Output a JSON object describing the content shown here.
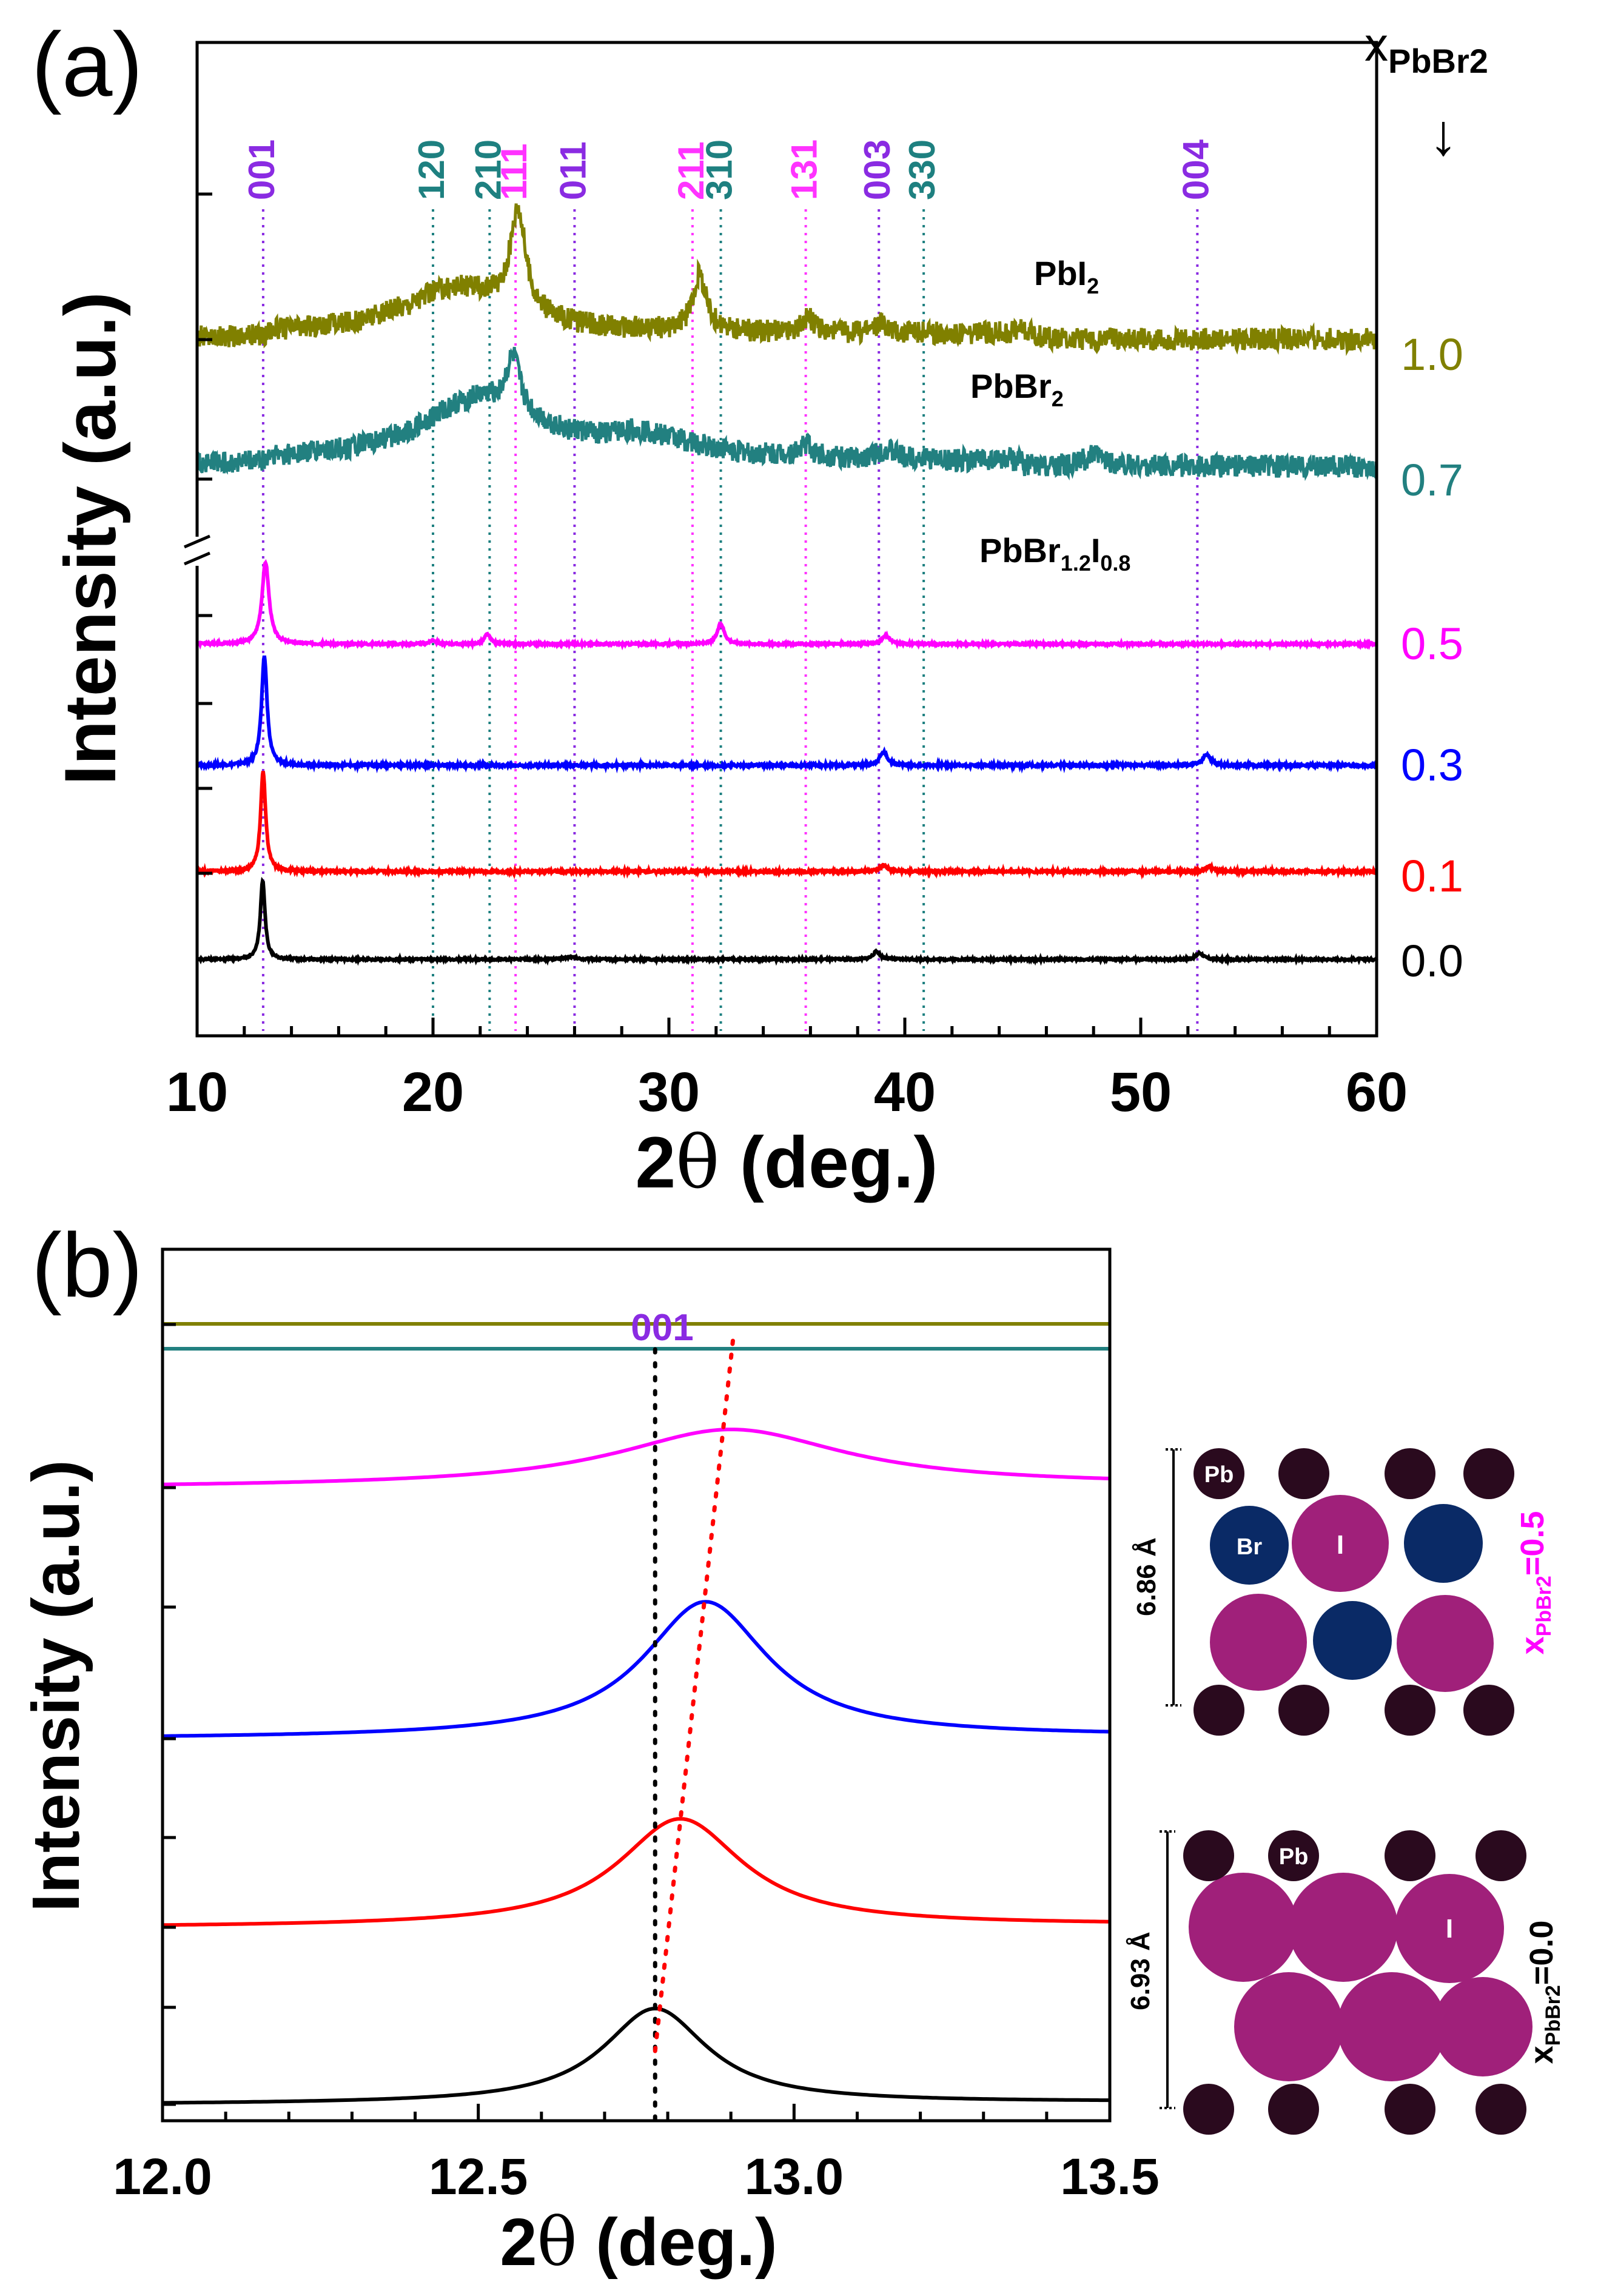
{
  "chart_data": [
    {
      "type": "line",
      "panel_label": "(a)",
      "xlabel_prefix": "2",
      "xlabel_theta": "θ",
      "xlabel_suffix": " (deg.)",
      "ylabel": "Intensity (a.u.)",
      "xlim": [
        10,
        60
      ],
      "x_ticks": [
        10,
        20,
        30,
        40,
        50,
        60
      ],
      "composition_header": {
        "base": "x",
        "sub": "PbBr2",
        "arrow": "↓"
      },
      "series": [
        {
          "name": "x_PbBr2 = 1.0",
          "label": "1.0",
          "color": "#808000",
          "kind": "broad",
          "peaks": [
            [
              21.0,
              0.45,
              2.8
            ],
            [
              23.6,
              1.0,
              0.4
            ],
            [
              31.3,
              0.55,
              0.35
            ],
            [
              35.9,
              0.15,
              0.3
            ],
            [
              39.0,
              0.1,
              0.4
            ],
            [
              45.2,
              0.06,
              0.5
            ]
          ]
        },
        {
          "name": "x_PbBr2 = 0.7",
          "label": "0.7",
          "color": "#228080",
          "kind": "broad",
          "peaks": [
            [
              22.0,
              0.6,
              3.0
            ],
            [
              23.4,
              0.5,
              0.35
            ],
            [
              29.0,
              0.2,
              2.5
            ],
            [
              35.8,
              0.12,
              0.3
            ],
            [
              39.2,
              0.08,
              0.5
            ],
            [
              48.0,
              0.1,
              0.5
            ]
          ]
        },
        {
          "name": "x_PbBr2 = 0.5",
          "label": "0.5",
          "color": "#ff00ff",
          "kind": "sharp",
          "peaks": [
            [
              12.9,
              1.0,
              0.18
            ],
            [
              22.3,
              0.12,
              0.15
            ],
            [
              32.2,
              0.25,
              0.18
            ],
            [
              39.2,
              0.1,
              0.2
            ],
            [
              20.0,
              0.05,
              0.15
            ]
          ]
        },
        {
          "name": "x_PbBr2 = 0.3",
          "label": "0.3",
          "color": "#0000ff",
          "kind": "sharp",
          "peaks": [
            [
              12.85,
              1.0,
              0.14
            ],
            [
              39.1,
              0.12,
              0.2
            ],
            [
              52.8,
              0.1,
              0.2
            ]
          ]
        },
        {
          "name": "x_PbBr2 = 0.1",
          "label": "0.1",
          "color": "#ff0000",
          "kind": "sharp",
          "peaks": [
            [
              12.8,
              1.0,
              0.13
            ],
            [
              39.1,
              0.06,
              0.2
            ],
            [
              52.9,
              0.05,
              0.2
            ]
          ]
        },
        {
          "name": "x_PbBr2 = 0.0",
          "label": "0.0",
          "color": "#000000",
          "kind": "sharp",
          "peaks": [
            [
              12.78,
              1.0,
              0.12
            ],
            [
              38.8,
              0.1,
              0.18
            ],
            [
              52.5,
              0.08,
              0.18
            ],
            [
              25.8,
              0.03,
              0.3
            ]
          ]
        }
      ],
      "reflections": [
        {
          "hkl": "001",
          "x": 12.8,
          "phase": "PbI2"
        },
        {
          "hkl": "120",
          "x": 20.0,
          "phase": "PbBr1.2I0.8"
        },
        {
          "hkl": "210",
          "x": 22.4,
          "phase": "PbBr1.2I0.8"
        },
        {
          "hkl": "111",
          "x": 23.5,
          "phase": "PbBr2"
        },
        {
          "hkl": "011",
          "x": 26.0,
          "phase": "PbI2"
        },
        {
          "hkl": "211",
          "x": 31.0,
          "phase": "PbBr2"
        },
        {
          "hkl": "310",
          "x": 32.2,
          "phase": "PbBr1.2I0.8"
        },
        {
          "hkl": "131",
          "x": 35.8,
          "phase": "PbBr2"
        },
        {
          "hkl": "003",
          "x": 38.9,
          "phase": "PbI2"
        },
        {
          "hkl": "330",
          "x": 40.8,
          "phase": "PbBr1.2I0.8"
        },
        {
          "hkl": "004",
          "x": 52.4,
          "phase": "PbI2"
        }
      ],
      "legend": {
        "pbi2": {
          "base": "PbI",
          "sub": "2",
          "color": "#8a2be2"
        },
        "pbbr2": {
          "base": "PbBr",
          "sub": "2",
          "color": "#ff33ff"
        },
        "mixed": {
          "base1": "PbBr",
          "sub1": "1.2",
          "base2": "I",
          "sub2": "0.8",
          "color": "#1e8080"
        }
      }
    },
    {
      "type": "line",
      "panel_label": "(b)",
      "xlabel_prefix": "2",
      "xlabel_theta": "θ",
      "xlabel_suffix": " (deg.)",
      "ylabel": "Intensity (a.u.)",
      "xlim": [
        12.0,
        13.5
      ],
      "x_ticks": [
        "12.0",
        "12.5",
        "13.0",
        "13.5"
      ],
      "peak_label": "001",
      "reference_line_x": 12.78,
      "series": [
        {
          "name": "x_PbBr2 = 1.0",
          "color": "#808000",
          "peak_x": null
        },
        {
          "name": "x_PbBr2 = 0.7",
          "color": "#228080",
          "peak_x": null
        },
        {
          "name": "x_PbBr2 = 0.5",
          "color": "#ff00ff",
          "peak_x": 12.9,
          "height": 0.18,
          "width": 0.22
        },
        {
          "name": "x_PbBr2 = 0.3",
          "color": "#0000ff",
          "peak_x": 12.86,
          "height": 0.43,
          "width": 0.12
        },
        {
          "name": "x_PbBr2 = 0.1",
          "color": "#ff0000",
          "peak_x": 12.82,
          "height": 0.34,
          "width": 0.12
        },
        {
          "name": "x_PbBr2 = 0.0",
          "color": "#000000",
          "peak_x": 12.78,
          "height": 0.3,
          "width": 0.1
        }
      ],
      "trend_line": {
        "from_x": 12.78,
        "to_x": 12.9,
        "color": "#ff0000"
      }
    }
  ],
  "structures": {
    "top": {
      "pb": "Pb",
      "br": "Br",
      "i": "I",
      "spacing": "6.86 Å",
      "comp": {
        "base": "x",
        "sub": "PbBr2",
        "val": "=0.5"
      },
      "comp_color": "#ff00ff"
    },
    "bottom": {
      "pb": "Pb",
      "i": "I",
      "spacing": "6.93 Å",
      "comp": {
        "base": "x",
        "sub": "PbBr2",
        "val": "=0.0"
      },
      "comp_color": "#000000"
    },
    "colors": {
      "pb": "#2a0a1e",
      "i": "#a0207a",
      "br": "#0a2a66"
    }
  }
}
